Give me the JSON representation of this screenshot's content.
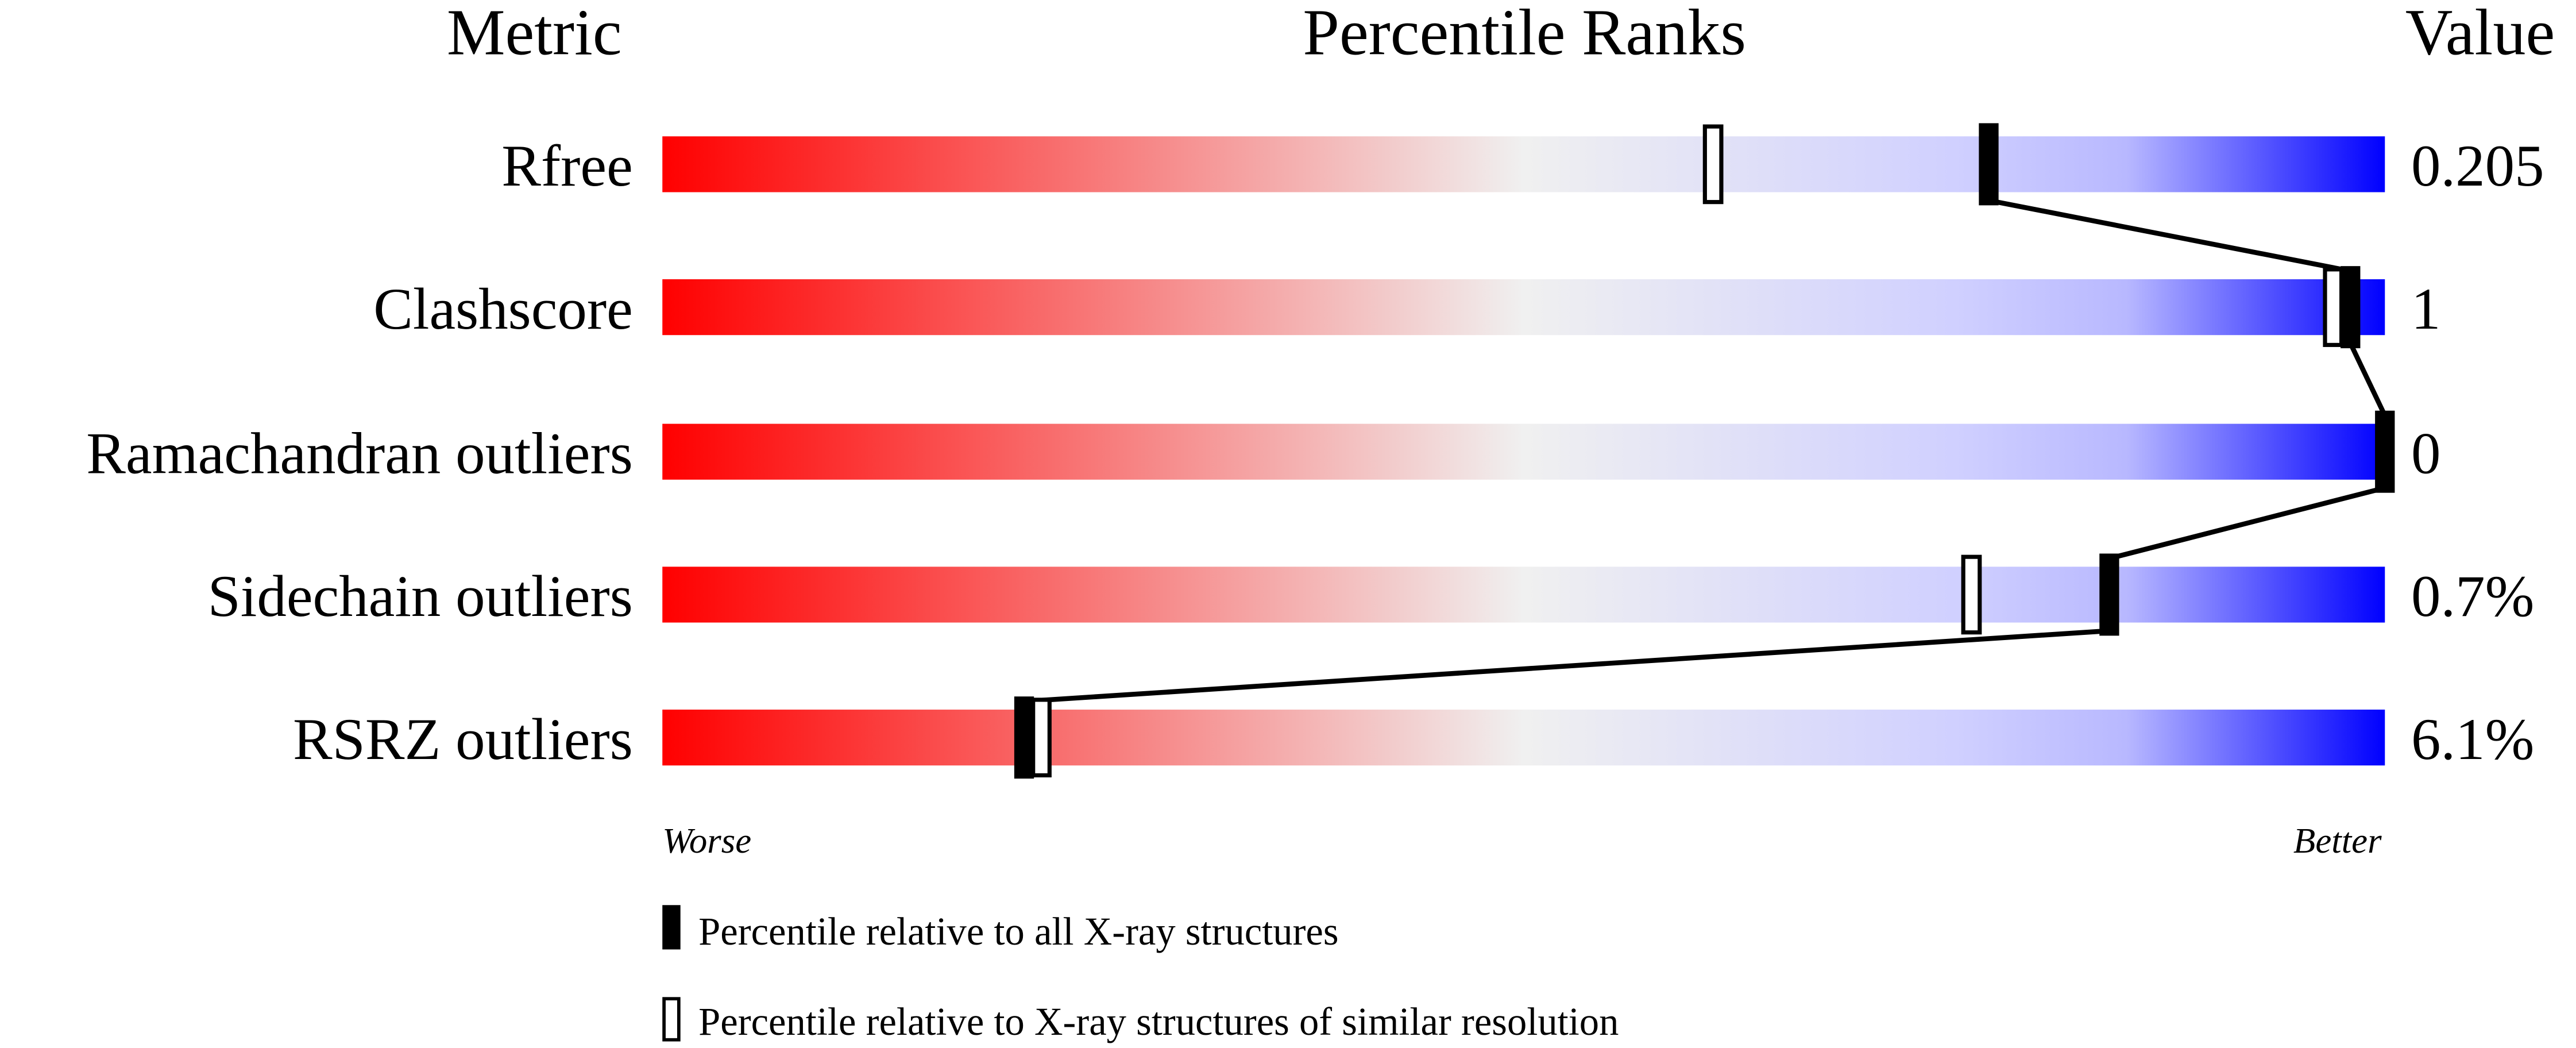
{
  "chart_data": {
    "type": "bar",
    "headers": {
      "metric": "Metric",
      "ranks": "Percentile Ranks",
      "value": "Value"
    },
    "xlim": [
      0,
      100
    ],
    "rows": [
      {
        "metric": "Rfree",
        "value": "0.205",
        "percentile_all": 77,
        "percentile_similar": 61
      },
      {
        "metric": "Clashscore",
        "value": "1",
        "percentile_all": 98,
        "percentile_similar": 97
      },
      {
        "metric": "Ramachandran outliers",
        "value": "0",
        "percentile_all": 100,
        "percentile_similar": null
      },
      {
        "metric": "Sidechain outliers",
        "value": "0.7%",
        "percentile_all": 84,
        "percentile_similar": 76
      },
      {
        "metric": "RSRZ outliers",
        "value": "6.1%",
        "percentile_all": 21,
        "percentile_similar": 22
      }
    ],
    "axis_labels": {
      "left": "Worse",
      "right": "Better"
    },
    "legend": [
      {
        "marker": "filled",
        "label": "Percentile relative to all X-ray structures"
      },
      {
        "marker": "open",
        "label": "Percentile relative to X-ray structures of similar resolution"
      }
    ],
    "colors": {
      "worse": "#ff0000",
      "middle": "#f0f0f0",
      "light_blue": "#d0d0ff",
      "better": "#0000ff",
      "marker": "#000000"
    }
  }
}
